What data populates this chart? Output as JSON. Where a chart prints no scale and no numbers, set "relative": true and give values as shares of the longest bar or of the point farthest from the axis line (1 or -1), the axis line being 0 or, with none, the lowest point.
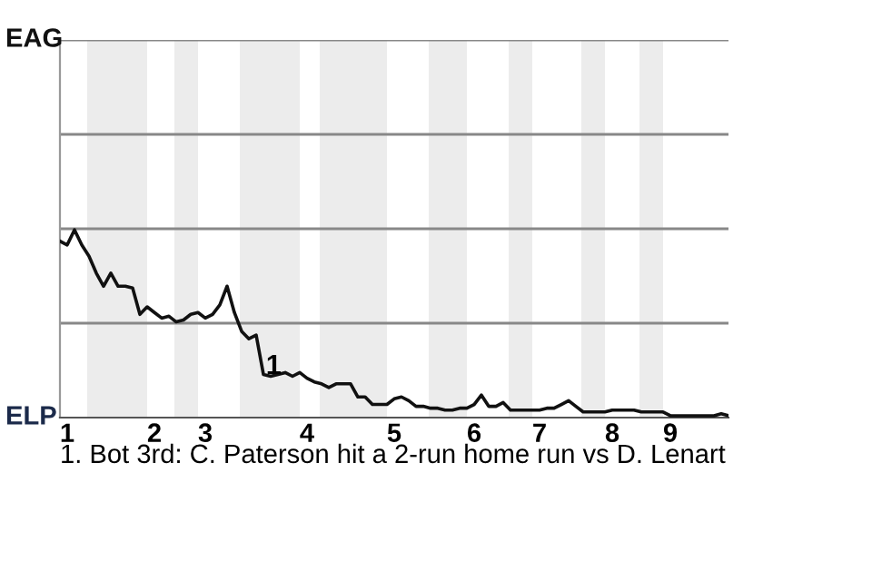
{
  "chart_data": {
    "type": "line",
    "relative": true,
    "categories": [
      null,
      "1",
      null,
      null,
      null,
      null,
      null,
      null,
      null,
      null,
      null,
      null,
      null,
      "2",
      null,
      null,
      null,
      null,
      null,
      null,
      "3",
      null,
      null,
      null,
      null,
      null,
      null,
      null,
      null,
      null,
      null,
      null,
      null,
      null,
      "4",
      null,
      null,
      null,
      null,
      null,
      null,
      null,
      null,
      null,
      null,
      null,
      "5",
      null,
      null,
      null,
      null,
      null,
      null,
      null,
      null,
      null,
      null,
      "6",
      null,
      null,
      null,
      null,
      null,
      null,
      null,
      null,
      "7",
      null,
      null,
      null,
      null,
      null,
      null,
      null,
      null,
      null,
      "8",
      null,
      null,
      null,
      null,
      null,
      null,
      null,
      "9",
      null,
      null,
      null,
      null,
      null,
      null,
      null,
      null
    ],
    "series": [
      {
        "color": "#111111",
        "values": [
          0.94,
          0.92,
          1.0,
          0.92,
          0.86,
          0.77,
          0.7,
          0.77,
          0.7,
          0.7,
          0.69,
          0.55,
          0.59,
          0.56,
          0.53,
          0.54,
          0.51,
          0.52,
          0.55,
          0.56,
          0.53,
          0.55,
          0.6,
          0.7,
          0.56,
          0.46,
          0.42,
          0.44,
          0.23,
          0.22,
          0.23,
          0.24,
          0.22,
          0.24,
          0.21,
          0.19,
          0.18,
          0.16,
          0.18,
          0.18,
          0.18,
          0.11,
          0.11,
          0.07,
          0.07,
          0.07,
          0.1,
          0.11,
          0.09,
          0.06,
          0.06,
          0.05,
          0.05,
          0.04,
          0.04,
          0.05,
          0.05,
          0.07,
          0.12,
          0.06,
          0.06,
          0.08,
          0.04,
          0.04,
          0.04,
          0.04,
          0.04,
          0.05,
          0.05,
          0.07,
          0.09,
          0.06,
          0.03,
          0.03,
          0.03,
          0.03,
          0.04,
          0.04,
          0.04,
          0.04,
          0.03,
          0.03,
          0.03,
          0.03,
          0.01,
          0.01,
          0.01,
          0.01,
          0.01,
          0.01,
          0.01,
          0.02,
          0.01
        ]
      }
    ],
    "line_style": "solid",
    "ref_lines": [
      {
        "axis": "y",
        "value": 0.503,
        "color": "#888888"
      },
      {
        "axis": "y",
        "value": 1.006,
        "color": "#888888"
      },
      {
        "axis": "y",
        "value": 1.509,
        "color": "#888888"
      },
      {
        "axis": "y",
        "value": 2.012,
        "label": "EAG",
        "color": "#888888"
      }
    ],
    "annotations": [
      {
        "text": "1",
        "y": 0.27
      },
      "1. Bot 3rd: C. Paterson hit a 2-run home run vs D. Lenart",
      "ELP"
    ]
  }
}
